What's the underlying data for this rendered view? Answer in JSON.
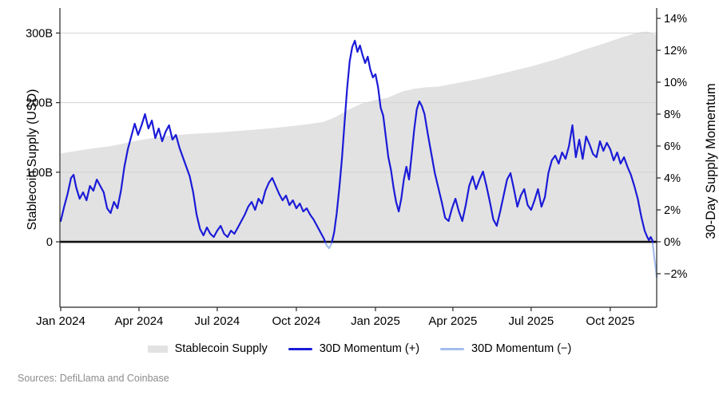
{
  "figure": {
    "sources": "Sources: DefiLlama and Coinbase"
  },
  "chart_data": {
    "type": "area_line_dual_axis",
    "left_axis": {
      "title": "Stablecoin Supply (USD)",
      "range": [
        -94,
        336
      ],
      "gridlines": [
        100,
        200,
        300
      ],
      "ticks": [
        {
          "v": 0,
          "label": "0"
        },
        {
          "v": 100,
          "label": "100B"
        },
        {
          "v": 200,
          "label": "200B"
        },
        {
          "v": 300,
          "label": "300B"
        }
      ]
    },
    "right_axis": {
      "title": "30-Day Supply Momentum",
      "range": [
        -4.1,
        14.65
      ],
      "ticks": [
        {
          "v": -2,
          "label": "−2%"
        },
        {
          "v": 0,
          "label": "0%"
        },
        {
          "v": 2,
          "label": "2%"
        },
        {
          "v": 4,
          "label": "4%"
        },
        {
          "v": 6,
          "label": "6%"
        },
        {
          "v": 8,
          "label": "8%"
        },
        {
          "v": 10,
          "label": "10%"
        },
        {
          "v": 12,
          "label": "12%"
        },
        {
          "v": 14,
          "label": "14%"
        }
      ]
    },
    "x_axis": {
      "range": [
        "2024-01-01",
        "2025-11-24"
      ],
      "ticks": [
        {
          "date": "2024-01-01",
          "label": "Jan 2024"
        },
        {
          "date": "2024-04-01",
          "label": "Apr 2024"
        },
        {
          "date": "2024-07-01",
          "label": "Jul 2024"
        },
        {
          "date": "2024-10-01",
          "label": "Oct 2024"
        },
        {
          "date": "2025-01-01",
          "label": "Jan 2025"
        },
        {
          "date": "2025-04-01",
          "label": "Apr 2025"
        },
        {
          "date": "2025-07-01",
          "label": "Jul 2025"
        },
        {
          "date": "2025-10-01",
          "label": "Oct 2025"
        }
      ]
    },
    "legend": [
      {
        "label": "Stablecoin Supply",
        "color": "#e2e2e2",
        "swatch": "bar"
      },
      {
        "label": "30D Momentum (+)",
        "color": "#1b1bd8",
        "swatch": "line"
      },
      {
        "label": "30D Momentum (−)",
        "color": "#a5bdee",
        "swatch": "line"
      }
    ],
    "colors": {
      "zero_line": "#111111",
      "gridline": "#d2d2d2",
      "spine": "#262626",
      "sources_text": "#8c8c8c"
    },
    "series": [
      {
        "name": "Stablecoin Supply",
        "axis": "left",
        "type": "area",
        "color": "#e2e2e2",
        "points": [
          [
            "2024-01-01",
            127
          ],
          [
            "2024-02-01",
            133
          ],
          [
            "2024-03-01",
            138
          ],
          [
            "2024-04-01",
            146
          ],
          [
            "2024-05-01",
            152
          ],
          [
            "2024-06-01",
            155
          ],
          [
            "2024-07-01",
            157
          ],
          [
            "2024-08-01",
            160
          ],
          [
            "2024-09-01",
            163
          ],
          [
            "2024-10-01",
            167
          ],
          [
            "2024-11-01",
            172
          ],
          [
            "2024-11-15",
            179
          ],
          [
            "2024-12-01",
            190
          ],
          [
            "2024-12-15",
            198
          ],
          [
            "2025-01-01",
            204
          ],
          [
            "2025-01-15",
            207
          ],
          [
            "2025-02-01",
            216
          ],
          [
            "2025-02-15",
            220
          ],
          [
            "2025-03-01",
            222
          ],
          [
            "2025-03-15",
            223
          ],
          [
            "2025-04-01",
            227
          ],
          [
            "2025-05-01",
            234
          ],
          [
            "2025-06-01",
            243
          ],
          [
            "2025-07-01",
            252
          ],
          [
            "2025-08-01",
            263
          ],
          [
            "2025-09-01",
            276
          ],
          [
            "2025-10-01",
            288
          ],
          [
            "2025-10-15",
            294
          ],
          [
            "2025-11-01",
            300
          ],
          [
            "2025-11-08",
            302
          ],
          [
            "2025-11-14",
            302
          ],
          [
            "2025-11-20",
            299
          ],
          [
            "2025-11-24",
            298
          ]
        ]
      },
      {
        "name": "30D Momentum",
        "axis": "right",
        "type": "line",
        "color_positive": "#1b1bd8",
        "color_negative": "#a5bdee",
        "points": [
          [
            "2024-01-01",
            1.3
          ],
          [
            "2024-01-05",
            2.2
          ],
          [
            "2024-01-09",
            3.0
          ],
          [
            "2024-01-13",
            4.0
          ],
          [
            "2024-01-16",
            4.2
          ],
          [
            "2024-01-19",
            3.4
          ],
          [
            "2024-01-23",
            2.7
          ],
          [
            "2024-01-27",
            3.1
          ],
          [
            "2024-01-31",
            2.6
          ],
          [
            "2024-02-04",
            3.5
          ],
          [
            "2024-02-08",
            3.2
          ],
          [
            "2024-02-12",
            3.9
          ],
          [
            "2024-02-16",
            3.5
          ],
          [
            "2024-02-20",
            3.1
          ],
          [
            "2024-02-24",
            2.1
          ],
          [
            "2024-02-28",
            1.8
          ],
          [
            "2024-03-03",
            2.5
          ],
          [
            "2024-03-07",
            2.1
          ],
          [
            "2024-03-11",
            3.2
          ],
          [
            "2024-03-15",
            4.7
          ],
          [
            "2024-03-19",
            5.8
          ],
          [
            "2024-03-23",
            6.6
          ],
          [
            "2024-03-27",
            7.4
          ],
          [
            "2024-03-31",
            6.7
          ],
          [
            "2024-04-04",
            7.3
          ],
          [
            "2024-04-08",
            8.0
          ],
          [
            "2024-04-12",
            7.1
          ],
          [
            "2024-04-16",
            7.6
          ],
          [
            "2024-04-20",
            6.5
          ],
          [
            "2024-04-24",
            7.1
          ],
          [
            "2024-04-28",
            6.3
          ],
          [
            "2024-05-02",
            6.9
          ],
          [
            "2024-05-06",
            7.3
          ],
          [
            "2024-05-10",
            6.4
          ],
          [
            "2024-05-14",
            6.7
          ],
          [
            "2024-05-18",
            5.9
          ],
          [
            "2024-05-22",
            5.3
          ],
          [
            "2024-05-26",
            4.7
          ],
          [
            "2024-05-30",
            4.1
          ],
          [
            "2024-06-03",
            3.1
          ],
          [
            "2024-06-07",
            1.7
          ],
          [
            "2024-06-11",
            0.8
          ],
          [
            "2024-06-15",
            0.4
          ],
          [
            "2024-06-19",
            0.9
          ],
          [
            "2024-06-23",
            0.5
          ],
          [
            "2024-06-27",
            0.3
          ],
          [
            "2024-07-01",
            0.7
          ],
          [
            "2024-07-05",
            1.0
          ],
          [
            "2024-07-09",
            0.5
          ],
          [
            "2024-07-13",
            0.3
          ],
          [
            "2024-07-17",
            0.7
          ],
          [
            "2024-07-21",
            0.5
          ],
          [
            "2024-07-25",
            0.9
          ],
          [
            "2024-07-29",
            1.3
          ],
          [
            "2024-08-02",
            1.7
          ],
          [
            "2024-08-06",
            2.2
          ],
          [
            "2024-08-10",
            2.5
          ],
          [
            "2024-08-14",
            2.0
          ],
          [
            "2024-08-18",
            2.7
          ],
          [
            "2024-08-22",
            2.4
          ],
          [
            "2024-08-26",
            3.2
          ],
          [
            "2024-08-30",
            3.7
          ],
          [
            "2024-09-03",
            4.0
          ],
          [
            "2024-09-07",
            3.5
          ],
          [
            "2024-09-11",
            3.0
          ],
          [
            "2024-09-15",
            2.6
          ],
          [
            "2024-09-19",
            2.9
          ],
          [
            "2024-09-23",
            2.3
          ],
          [
            "2024-09-27",
            2.6
          ],
          [
            "2024-10-01",
            2.1
          ],
          [
            "2024-10-05",
            2.4
          ],
          [
            "2024-10-09",
            1.9
          ],
          [
            "2024-10-13",
            2.1
          ],
          [
            "2024-10-17",
            1.7
          ],
          [
            "2024-10-21",
            1.4
          ],
          [
            "2024-10-25",
            1.0
          ],
          [
            "2024-10-29",
            0.6
          ],
          [
            "2024-11-02",
            0.2
          ],
          [
            "2024-11-05",
            -0.2
          ],
          [
            "2024-11-08",
            -0.4
          ],
          [
            "2024-11-11",
            -0.1
          ],
          [
            "2024-11-14",
            0.6
          ],
          [
            "2024-11-17",
            1.8
          ],
          [
            "2024-11-20",
            3.4
          ],
          [
            "2024-11-23",
            5.2
          ],
          [
            "2024-11-26",
            7.4
          ],
          [
            "2024-11-29",
            9.6
          ],
          [
            "2024-12-02",
            11.3
          ],
          [
            "2024-12-05",
            12.2
          ],
          [
            "2024-12-08",
            12.6
          ],
          [
            "2024-12-11",
            11.9
          ],
          [
            "2024-12-14",
            12.3
          ],
          [
            "2024-12-17",
            11.7
          ],
          [
            "2024-12-20",
            11.2
          ],
          [
            "2024-12-23",
            11.6
          ],
          [
            "2024-12-26",
            10.8
          ],
          [
            "2024-12-29",
            10.3
          ],
          [
            "2025-01-01",
            10.5
          ],
          [
            "2025-01-04",
            9.7
          ],
          [
            "2025-01-07",
            8.4
          ],
          [
            "2025-01-10",
            7.9
          ],
          [
            "2025-01-13",
            6.6
          ],
          [
            "2025-01-16",
            5.3
          ],
          [
            "2025-01-19",
            4.5
          ],
          [
            "2025-01-22",
            3.4
          ],
          [
            "2025-01-25",
            2.5
          ],
          [
            "2025-01-28",
            1.9
          ],
          [
            "2025-01-31",
            2.7
          ],
          [
            "2025-02-03",
            3.9
          ],
          [
            "2025-02-06",
            4.7
          ],
          [
            "2025-02-09",
            3.9
          ],
          [
            "2025-02-12",
            5.4
          ],
          [
            "2025-02-15",
            7.0
          ],
          [
            "2025-02-18",
            8.3
          ],
          [
            "2025-02-21",
            8.8
          ],
          [
            "2025-02-24",
            8.5
          ],
          [
            "2025-02-27",
            8.0
          ],
          [
            "2025-03-03",
            6.7
          ],
          [
            "2025-03-07",
            5.5
          ],
          [
            "2025-03-11",
            4.3
          ],
          [
            "2025-03-15",
            3.4
          ],
          [
            "2025-03-19",
            2.5
          ],
          [
            "2025-03-23",
            1.5
          ],
          [
            "2025-03-27",
            1.3
          ],
          [
            "2025-03-31",
            2.1
          ],
          [
            "2025-04-04",
            2.7
          ],
          [
            "2025-04-08",
            1.9
          ],
          [
            "2025-04-12",
            1.3
          ],
          [
            "2025-04-16",
            2.3
          ],
          [
            "2025-04-20",
            3.5
          ],
          [
            "2025-04-24",
            4.1
          ],
          [
            "2025-04-28",
            3.3
          ],
          [
            "2025-05-02",
            3.9
          ],
          [
            "2025-05-06",
            4.4
          ],
          [
            "2025-05-10",
            3.5
          ],
          [
            "2025-05-14",
            2.5
          ],
          [
            "2025-05-18",
            1.4
          ],
          [
            "2025-05-22",
            1.0
          ],
          [
            "2025-05-26",
            1.9
          ],
          [
            "2025-05-30",
            2.9
          ],
          [
            "2025-06-03",
            3.9
          ],
          [
            "2025-06-07",
            4.3
          ],
          [
            "2025-06-11",
            3.3
          ],
          [
            "2025-06-15",
            2.2
          ],
          [
            "2025-06-19",
            2.9
          ],
          [
            "2025-06-23",
            3.3
          ],
          [
            "2025-06-27",
            2.3
          ],
          [
            "2025-07-01",
            2.0
          ],
          [
            "2025-07-05",
            2.6
          ],
          [
            "2025-07-09",
            3.3
          ],
          [
            "2025-07-13",
            2.2
          ],
          [
            "2025-07-17",
            2.8
          ],
          [
            "2025-07-21",
            4.3
          ],
          [
            "2025-07-25",
            5.1
          ],
          [
            "2025-07-29",
            5.4
          ],
          [
            "2025-08-02",
            4.9
          ],
          [
            "2025-08-06",
            5.6
          ],
          [
            "2025-08-10",
            5.2
          ],
          [
            "2025-08-14",
            6.0
          ],
          [
            "2025-08-18",
            7.3
          ],
          [
            "2025-08-22",
            5.3
          ],
          [
            "2025-08-26",
            6.4
          ],
          [
            "2025-08-30",
            5.2
          ],
          [
            "2025-09-03",
            6.6
          ],
          [
            "2025-09-07",
            6.1
          ],
          [
            "2025-09-11",
            5.5
          ],
          [
            "2025-09-15",
            5.3
          ],
          [
            "2025-09-19",
            6.3
          ],
          [
            "2025-09-23",
            5.7
          ],
          [
            "2025-09-27",
            6.2
          ],
          [
            "2025-10-01",
            5.8
          ],
          [
            "2025-10-05",
            5.1
          ],
          [
            "2025-10-09",
            5.6
          ],
          [
            "2025-10-13",
            4.9
          ],
          [
            "2025-10-17",
            5.3
          ],
          [
            "2025-10-21",
            4.7
          ],
          [
            "2025-10-25",
            4.2
          ],
          [
            "2025-10-29",
            3.5
          ],
          [
            "2025-11-02",
            2.7
          ],
          [
            "2025-11-06",
            1.6
          ],
          [
            "2025-11-10",
            0.7
          ],
          [
            "2025-11-13",
            0.3
          ],
          [
            "2025-11-15",
            0.1
          ],
          [
            "2025-11-17",
            0.3
          ],
          [
            "2025-11-19",
            0.1
          ],
          [
            "2025-11-21",
            -0.9
          ],
          [
            "2025-11-23",
            -1.7
          ],
          [
            "2025-11-24",
            -2.2
          ]
        ]
      }
    ]
  }
}
